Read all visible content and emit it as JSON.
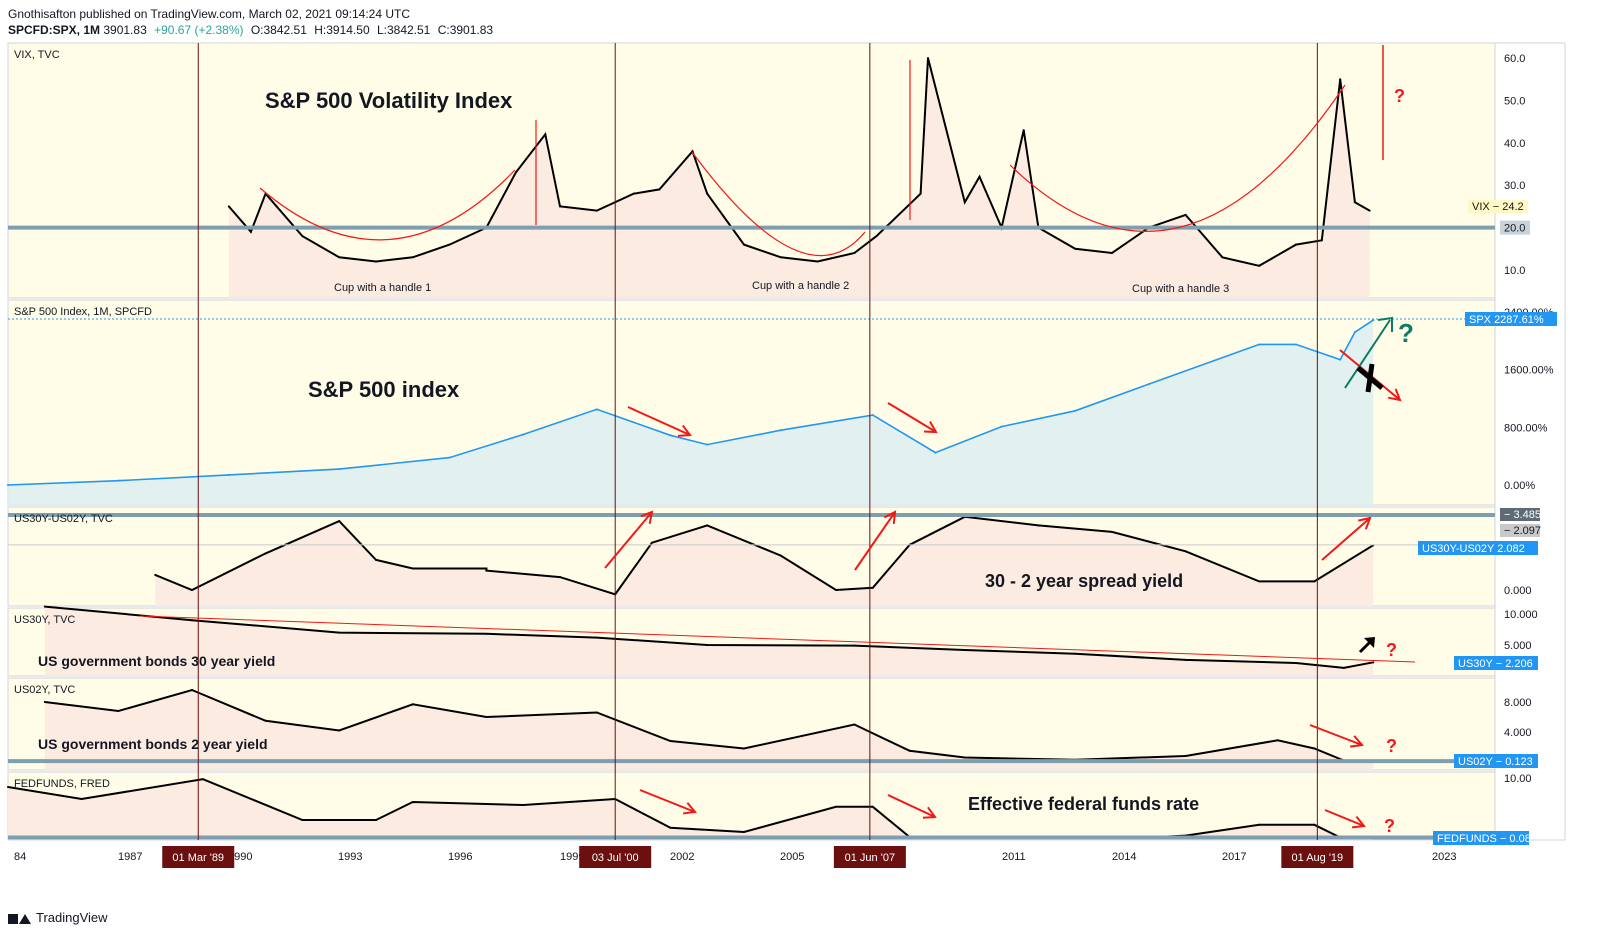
{
  "header": {
    "publish_line": "Gnothisafton published on TradingView.com, March 02, 2021 09:14:24 UTC",
    "symbol": "SPCFD:SPX, 1M",
    "last": "3901.83",
    "change": "+90.67 (+2.38%)",
    "open": "O:3842.51",
    "high": "H:3914.50",
    "low": "L:3842.51",
    "close": "C:3901.83"
  },
  "footer": {
    "brand": "TradingView"
  },
  "colors": {
    "background": "#fffde7",
    "area_fill": "#fbe9df",
    "spx_line": "#2196f3",
    "annotation_red": "#f21818",
    "level_line": "#7d9fb0",
    "marker_bg": "#6b0f0f",
    "tag_blue": "#2196f3",
    "green_arrow": "#0b7a66"
  },
  "time_axis": {
    "labels": [
      "84",
      "1987",
      "1990",
      "1993",
      "1996",
      "1999",
      "2002",
      "2005",
      "2011",
      "2014",
      "2017",
      "2023"
    ],
    "markers": [
      "01 Mar '89",
      "03 Jul '00",
      "01 Jun '07",
      "01 Aug '19"
    ]
  },
  "panels": {
    "vix": {
      "title": "VIX, TVC",
      "heading": "S&P 500 Volatility Index",
      "ticks": [
        "60.0",
        "50.0",
        "40.0",
        "30.0",
        "10.0"
      ],
      "price_tag": "VIX",
      "price_value": "24.2",
      "level_value": "20.0",
      "annotations": [
        "Cup with a handle 1",
        "Cup with a handle 2",
        "Cup with a handle 3"
      ],
      "question": "?"
    },
    "spx": {
      "title": "S&P 500 Index, 1M, SPCFD",
      "heading": "S&P 500 index",
      "ticks": [
        "2400.00%",
        "1600.00%",
        "800.00%",
        "0.00%"
      ],
      "tag": "SPX",
      "tag_value": "2287.61%",
      "question": "?"
    },
    "spread": {
      "title": "US30Y-US02Y, TVC",
      "heading": "30 - 2 year spread yield",
      "ticks": [
        "0.000"
      ],
      "level_1": "3.485",
      "level_2": "2.097",
      "tag": "US30Y-US02Y",
      "tag_value": "2.082"
    },
    "us30": {
      "title": "US30Y, TVC",
      "heading": "US government bonds 30 year yield",
      "ticks": [
        "10.000",
        "5.000"
      ],
      "tag": "US30Y",
      "tag_value": "2.206",
      "question": "?"
    },
    "us02": {
      "title": "US02Y, TVC",
      "heading": "US government bonds 2 year yield",
      "ticks": [
        "8.000",
        "4.000"
      ],
      "tag": "US02Y",
      "tag_value": "0.123",
      "question": "?"
    },
    "fed": {
      "title": "FEDFUNDS, FRED",
      "heading": "Effective federal funds rate",
      "ticks": [
        "10.00"
      ],
      "tag": "FEDFUNDS",
      "tag_value": "0.08",
      "question": "?"
    }
  },
  "chart_data": [
    {
      "type": "line",
      "title": "VIX, TVC",
      "x": [
        1990.0,
        1990.6,
        1991.0,
        1992.0,
        1993.0,
        1994.0,
        1995.0,
        1996.0,
        1997.0,
        1997.8,
        1998.6,
        1999.0,
        2000.0,
        2001.0,
        2001.7,
        2002.6,
        2003.0,
        2004.0,
        2005.0,
        2006.0,
        2007.0,
        2007.6,
        2008.8,
        2009.0,
        2010.0,
        2010.4,
        2011.0,
        2011.6,
        2012.0,
        2013.0,
        2014.0,
        2015.0,
        2016.0,
        2017.0,
        2018.0,
        2019.0,
        2019.7,
        2020.2,
        2020.6,
        2021.0
      ],
      "y": [
        25,
        19,
        28,
        18,
        13,
        12,
        13,
        16,
        20,
        33,
        42,
        25,
        24,
        28,
        29,
        38,
        28,
        16,
        13,
        12,
        14,
        18,
        28,
        60,
        26,
        32,
        20,
        43,
        20,
        15,
        14,
        20,
        23,
        13,
        11,
        16,
        17,
        55,
        26,
        24
      ],
      "ylim": [
        10,
        60
      ],
      "levels": [
        20
      ]
    },
    {
      "type": "area",
      "title": "S&P 500 Index, 1M, SPCFD",
      "x": [
        1984,
        1987,
        1990,
        1993,
        1996,
        1998,
        2000,
        2002,
        2003,
        2005,
        2007.5,
        2009.2,
        2011,
        2013,
        2015,
        2018,
        2019,
        2020.2,
        2020.6,
        2021.1
      ],
      "y": [
        0,
        60,
        140,
        220,
        380,
        700,
        1050,
        690,
        560,
        760,
        970,
        450,
        810,
        1030,
        1400,
        1950,
        1950,
        1740,
        2120,
        2288
      ],
      "ylim": [
        0,
        2400
      ],
      "unit": "%"
    },
    {
      "type": "area",
      "title": "US30Y-US02Y, TVC",
      "x": [
        1997,
        1988,
        1989,
        1991,
        1993,
        1994,
        1995,
        1997,
        1999,
        2000.5,
        2001.5,
        2003,
        2005,
        2006.5,
        2007.5,
        2008.5,
        2010,
        2012,
        2014,
        2016,
        2018,
        2019.5,
        2021.1
      ],
      "y": [
        1.0,
        0.7,
        0.0,
        1.7,
        3.2,
        1.4,
        1.0,
        0.9,
        0.6,
        -0.2,
        2.2,
        3.0,
        1.6,
        0.0,
        0.1,
        2.1,
        3.4,
        3.0,
        2.7,
        1.8,
        0.4,
        0.4,
        2.08
      ],
      "ylim": [
        0,
        3.485
      ],
      "levels": [
        3.485,
        2.097
      ]
    },
    {
      "type": "line",
      "title": "US30Y, TVC",
      "x": [
        1985,
        1989,
        1993,
        1997,
        2000,
        2003,
        2007,
        2010,
        2013,
        2016,
        2019,
        2020.3,
        2021.1
      ],
      "y": [
        11.2,
        9.0,
        7.0,
        6.8,
        6.2,
        5.0,
        4.9,
        4.2,
        3.6,
        2.6,
        2.1,
        1.3,
        2.206
      ],
      "ylim": [
        0,
        10
      ],
      "unit": ""
    },
    {
      "type": "area",
      "title": "US02Y, TVC",
      "x": [
        1985,
        1987,
        1989,
        1991,
        1993,
        1995,
        1997,
        2000,
        2002,
        2004,
        2007,
        2008.5,
        2010,
        2013,
        2016,
        2018.5,
        2019.5,
        2020.3,
        2021.1
      ],
      "y": [
        8.0,
        6.8,
        9.6,
        5.5,
        4.2,
        7.7,
        6.0,
        6.6,
        2.8,
        1.8,
        5.0,
        1.5,
        0.6,
        0.3,
        0.8,
        2.9,
        1.8,
        0.2,
        0.123
      ],
      "ylim": [
        0,
        10
      ],
      "levels": [
        0.123
      ]
    },
    {
      "type": "area",
      "title": "FEDFUNDS, FRED",
      "x": [
        1984,
        1986,
        1989.3,
        1992,
        1994,
        1995,
        1998,
        2000.5,
        2002,
        2004,
        2006.5,
        2007.5,
        2008.5,
        2015,
        2016,
        2018,
        2019.5,
        2020.2,
        2021.1
      ],
      "y": [
        8.5,
        6.5,
        9.8,
        3.0,
        3.0,
        6.0,
        5.5,
        6.5,
        1.7,
        1.0,
        5.2,
        5.2,
        0.16,
        0.1,
        0.4,
        2.2,
        2.2,
        0.08,
        0.08
      ],
      "ylim": [
        0,
        10
      ],
      "levels": [
        0.08
      ]
    }
  ]
}
